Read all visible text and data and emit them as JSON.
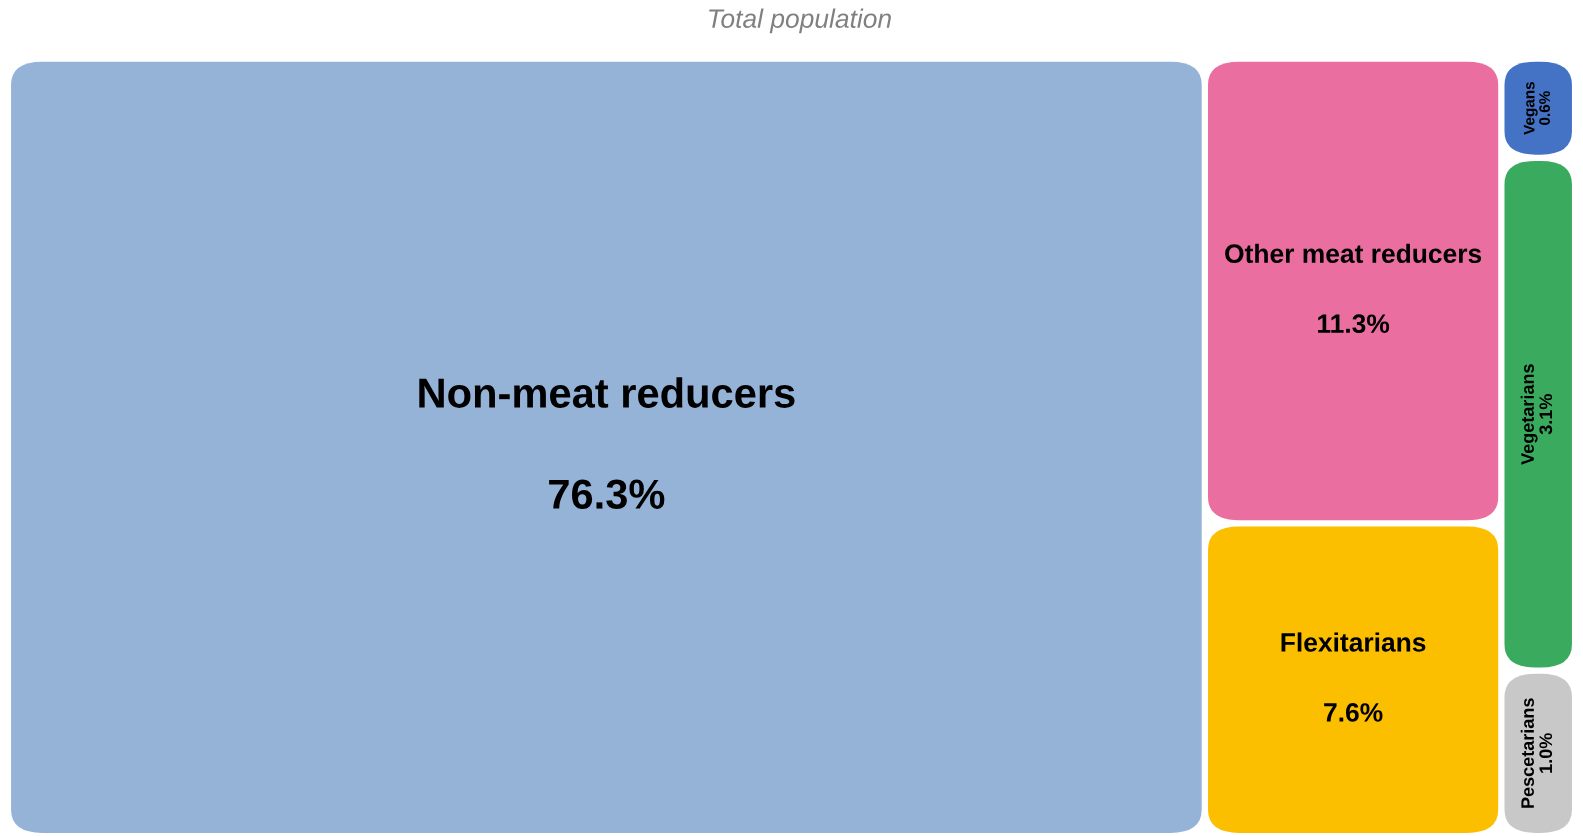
{
  "chart_data": {
    "type": "other",
    "subtitle": "Total population",
    "categories": [
      "Non-meat reducers",
      "Other meat reducers",
      "Flexitarians",
      "Vegans",
      "Vegetarians",
      "Pescetarians"
    ],
    "values": [
      76.3,
      11.3,
      7.6,
      0.6,
      3.1,
      1.0
    ],
    "value_labels": [
      "76.3%",
      "11.3%",
      "7.6%",
      "0.6%",
      "3.1%",
      "1.0%"
    ],
    "colors": [
      "#95b3d7",
      "#eb6ea0",
      "#fbbf00",
      "#4472c4",
      "#3aaa5e",
      "#c8c8c8"
    ]
  }
}
